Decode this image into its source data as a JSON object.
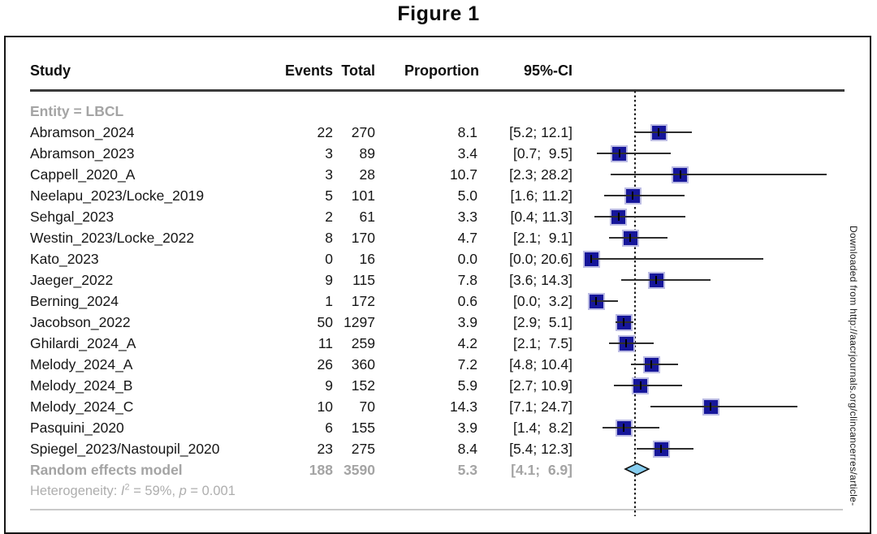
{
  "figure_label": "Figure 1",
  "watermark": "Downloaded from http://aacrjournals.org/clincancerres/article-",
  "style": {
    "square_fill": "#16169a",
    "square_halo": "#bcbce4",
    "diamond_fill": "#86cdef",
    "diamond_stroke": "#111111",
    "gray_text": "#a4a4a4",
    "ci_line": "#2e2e2e"
  },
  "chart_data": {
    "type": "scatter",
    "subtype": "forest-plot-meta-analysis",
    "title": "Figure 1",
    "legend_position": "none",
    "grid": false,
    "x_range_percent": [
      0,
      30
    ],
    "ref_line": 5.3,
    "columns": [
      "Study",
      "Events",
      "Total",
      "Proportion",
      "95%-CI"
    ],
    "group_label": "Entity = LBCL",
    "studies": [
      {
        "name": "Abramson_2024",
        "events": "22",
        "total": "270",
        "proportion": "8.1",
        "ci_text": "[5.2; 12.1]",
        "est": 8.1,
        "lo": 5.2,
        "hi": 12.1
      },
      {
        "name": "Abramson_2023",
        "events": "3",
        "total": "89",
        "proportion": "3.4",
        "ci_text": "[0.7;  9.5]",
        "est": 3.4,
        "lo": 0.7,
        "hi": 9.5
      },
      {
        "name": "Cappell_2020_A",
        "events": "3",
        "total": "28",
        "proportion": "10.7",
        "ci_text": "[2.3; 28.2]",
        "est": 10.7,
        "lo": 2.3,
        "hi": 28.2
      },
      {
        "name": "Neelapu_2023/Locke_2019",
        "events": "5",
        "total": "101",
        "proportion": "5.0",
        "ci_text": "[1.6; 11.2]",
        "est": 5.0,
        "lo": 1.6,
        "hi": 11.2
      },
      {
        "name": "Sehgal_2023",
        "events": "2",
        "total": "61",
        "proportion": "3.3",
        "ci_text": "[0.4; 11.3]",
        "est": 3.3,
        "lo": 0.4,
        "hi": 11.3
      },
      {
        "name": "Westin_2023/Locke_2022",
        "events": "8",
        "total": "170",
        "proportion": "4.7",
        "ci_text": "[2.1;  9.1]",
        "est": 4.7,
        "lo": 2.1,
        "hi": 9.1
      },
      {
        "name": "Kato_2023",
        "events": "0",
        "total": "16",
        "proportion": "0.0",
        "ci_text": "[0.0; 20.6]",
        "est": 0.0,
        "lo": 0.0,
        "hi": 20.6
      },
      {
        "name": "Jaeger_2022",
        "events": "9",
        "total": "115",
        "proportion": "7.8",
        "ci_text": "[3.6; 14.3]",
        "est": 7.8,
        "lo": 3.6,
        "hi": 14.3
      },
      {
        "name": "Berning_2024",
        "events": "1",
        "total": "172",
        "proportion": "0.6",
        "ci_text": "[0.0;  3.2]",
        "est": 0.6,
        "lo": 0.0,
        "hi": 3.2
      },
      {
        "name": "Jacobson_2022",
        "events": "50",
        "total": "1297",
        "proportion": "3.9",
        "ci_text": "[2.9;  5.1]",
        "est": 3.9,
        "lo": 2.9,
        "hi": 5.1
      },
      {
        "name": "Ghilardi_2024_A",
        "events": "11",
        "total": "259",
        "proportion": "4.2",
        "ci_text": "[2.1;  7.5]",
        "est": 4.2,
        "lo": 2.1,
        "hi": 7.5
      },
      {
        "name": "Melody_2024_A",
        "events": "26",
        "total": "360",
        "proportion": "7.2",
        "ci_text": "[4.8; 10.4]",
        "est": 7.2,
        "lo": 4.8,
        "hi": 10.4
      },
      {
        "name": "Melody_2024_B",
        "events": "9",
        "total": "152",
        "proportion": "5.9",
        "ci_text": "[2.7; 10.9]",
        "est": 5.9,
        "lo": 2.7,
        "hi": 10.9
      },
      {
        "name": "Melody_2024_C",
        "events": "10",
        "total": "70",
        "proportion": "14.3",
        "ci_text": "[7.1; 24.7]",
        "est": 14.3,
        "lo": 7.1,
        "hi": 24.7
      },
      {
        "name": "Pasquini_2020",
        "events": "6",
        "total": "155",
        "proportion": "3.9",
        "ci_text": "[1.4;  8.2]",
        "est": 3.9,
        "lo": 1.4,
        "hi": 8.2
      },
      {
        "name": "Spiegel_2023/Nastoupil_2020",
        "events": "23",
        "total": "275",
        "proportion": "8.4",
        "ci_text": "[5.4; 12.3]",
        "est": 8.4,
        "lo": 5.4,
        "hi": 12.3
      }
    ],
    "summary": {
      "name": "Random effects model",
      "events": "188",
      "total": "3590",
      "proportion": "5.3",
      "ci_text": "[4.1;  6.9]",
      "est": 5.3,
      "lo": 4.1,
      "hi": 6.9
    },
    "heterogeneity": {
      "prefix": "Heterogeneity: ",
      "stat": "I",
      "sup": "2",
      "mid": " = 59%, ",
      "pvar": "p",
      "rest": " = 0.001"
    }
  }
}
